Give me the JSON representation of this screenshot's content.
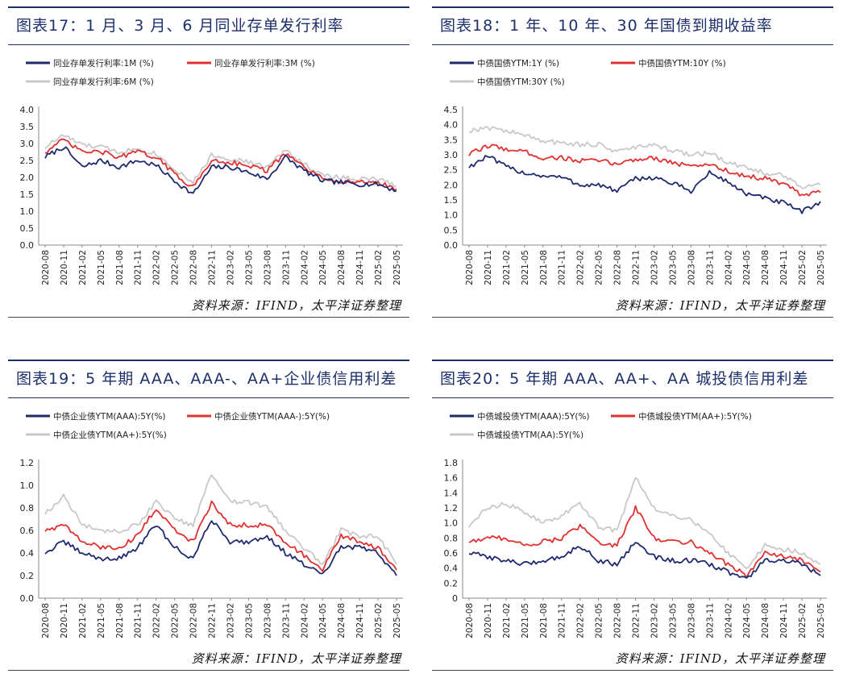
{
  "panels": [
    {
      "title": "图表17：1 月、3 月、6 月同业存单发行利率",
      "source": "资料来源：IFIND，太平洋证券整理"
    },
    {
      "title": "图表18：1 年、10 年、30 年国债到期收益率",
      "source": "资料来源：IFIND，太平洋证券整理"
    },
    {
      "title": "图表19：5 年期 AAA、AAA-、AA+企业债信用利差",
      "source": "资料来源：IFIND，太平洋证券整理"
    },
    {
      "title": "图表20：5 年期 AAA、AA+、AA 城投债信用利差",
      "source": "资料来源：IFIND，太平洋证券整理"
    }
  ],
  "chart_data": [
    {
      "type": "line",
      "x": [
        "2020-08",
        "2020-11",
        "2021-02",
        "2021-05",
        "2021-08",
        "2021-11",
        "2022-02",
        "2022-05",
        "2022-08",
        "2022-11",
        "2023-02",
        "2023-05",
        "2023-08",
        "2023-11",
        "2024-02",
        "2024-05",
        "2024-08",
        "2024-11",
        "2025-02",
        "2025-05"
      ],
      "xticks": [
        "2020-08",
        "2020-11",
        "2021-02",
        "2021-05",
        "2021-08",
        "2021-11",
        "2022-02",
        "2022-05",
        "2022-08",
        "2022-11",
        "2023-02",
        "2023-05",
        "2023-08",
        "2023-11",
        "2024-02",
        "2024-05",
        "2024-08",
        "2024-11",
        "2025-02",
        "2025-05"
      ],
      "ylim": [
        0,
        4.0
      ],
      "yticks": [
        "0.0",
        "0.5",
        "1.0",
        "1.5",
        "2.0",
        "2.5",
        "3.0",
        "3.5",
        "4.0"
      ],
      "series": [
        {
          "name": "同业存单发行利率:1M (%)",
          "color": "#1f2a6e",
          "values": [
            2.6,
            2.9,
            2.3,
            2.5,
            2.3,
            2.5,
            2.35,
            1.9,
            1.5,
            2.3,
            2.3,
            2.15,
            1.95,
            2.6,
            2.2,
            1.9,
            1.85,
            1.8,
            1.8,
            1.6
          ]
        },
        {
          "name": "同业存单发行利率:3M (%)",
          "color": "#e03030",
          "values": [
            2.75,
            3.1,
            2.75,
            2.75,
            2.6,
            2.75,
            2.6,
            2.1,
            1.7,
            2.5,
            2.45,
            2.35,
            2.2,
            2.7,
            2.3,
            1.95,
            1.9,
            1.85,
            1.85,
            1.65
          ]
        },
        {
          "name": "同业存单发行利率:6M (%)",
          "color": "#c8c8c8",
          "values": [
            2.9,
            3.25,
            2.95,
            2.9,
            2.75,
            2.85,
            2.7,
            2.25,
            1.85,
            2.65,
            2.55,
            2.45,
            2.3,
            2.8,
            2.4,
            2.05,
            2.0,
            1.95,
            1.95,
            1.75
          ]
        }
      ]
    },
    {
      "type": "line",
      "x": [
        "2020-08",
        "2020-11",
        "2021-02",
        "2021-05",
        "2021-08",
        "2021-11",
        "2022-02",
        "2022-05",
        "2022-08",
        "2022-11",
        "2023-02",
        "2023-05",
        "2023-08",
        "2023-11",
        "2024-02",
        "2024-05",
        "2024-08",
        "2024-11",
        "2025-02",
        "2025-05"
      ],
      "xticks": [
        "2020-08",
        "2020-11",
        "2021-02",
        "2021-05",
        "2021-08",
        "2021-11",
        "2022-02",
        "2022-05",
        "2022-08",
        "2022-11",
        "2023-02",
        "2023-05",
        "2023-08",
        "2023-11",
        "2024-02",
        "2024-05",
        "2024-08",
        "2024-11",
        "2025-02",
        "2025-05"
      ],
      "ylim": [
        0,
        4.5
      ],
      "yticks": [
        "0.0",
        "0.5",
        "1.0",
        "1.5",
        "2.0",
        "2.5",
        "3.0",
        "3.5",
        "4.0",
        "4.5"
      ],
      "series": [
        {
          "name": "中债国债YTM:1Y (%)",
          "color": "#1f2a6e",
          "values": [
            2.6,
            2.95,
            2.6,
            2.4,
            2.3,
            2.25,
            2.0,
            2.0,
            1.8,
            2.2,
            2.25,
            2.05,
            1.8,
            2.4,
            2.1,
            1.7,
            1.55,
            1.4,
            1.1,
            1.45
          ]
        },
        {
          "name": "中债国债YTM:10Y (%)",
          "color": "#e03030",
          "values": [
            3.0,
            3.3,
            3.2,
            3.1,
            2.9,
            2.9,
            2.8,
            2.8,
            2.7,
            2.85,
            2.9,
            2.75,
            2.6,
            2.7,
            2.45,
            2.3,
            2.2,
            2.05,
            1.65,
            1.75
          ]
        },
        {
          "name": "中债国债YTM:30Y (%)",
          "color": "#c8c8c8",
          "values": [
            3.8,
            3.9,
            3.8,
            3.65,
            3.45,
            3.4,
            3.35,
            3.35,
            3.1,
            3.25,
            3.3,
            3.15,
            3.0,
            3.05,
            2.75,
            2.55,
            2.4,
            2.3,
            1.95,
            2.0
          ]
        }
      ]
    },
    {
      "type": "line",
      "x": [
        "2020-08",
        "2020-11",
        "2021-02",
        "2021-05",
        "2021-08",
        "2021-11",
        "2022-02",
        "2022-05",
        "2022-08",
        "2022-11",
        "2023-02",
        "2023-05",
        "2023-08",
        "2023-11",
        "2024-02",
        "2024-05",
        "2024-08",
        "2024-11",
        "2025-02",
        "2025-05"
      ],
      "xticks": [
        "2020-08",
        "2020-11",
        "2021-02",
        "2021-05",
        "2021-08",
        "2021-11",
        "2022-02",
        "2022-05",
        "2022-08",
        "2022-11",
        "2023-02",
        "2023-05",
        "2023-08",
        "2023-11",
        "2024-02",
        "2024-05",
        "2024-08",
        "2024-11",
        "2025-02",
        "2025-05"
      ],
      "ylim": [
        0,
        1.2
      ],
      "yticks": [
        "0.0",
        "0.2",
        "0.4",
        "0.6",
        "0.8",
        "1.0",
        "1.2"
      ],
      "series": [
        {
          "name": "中债企业债YTM(AAA):5Y(%)",
          "color": "#1f2a6e",
          "values": [
            0.4,
            0.5,
            0.4,
            0.35,
            0.35,
            0.45,
            0.65,
            0.45,
            0.35,
            0.7,
            0.5,
            0.5,
            0.55,
            0.4,
            0.3,
            0.2,
            0.45,
            0.45,
            0.4,
            0.2
          ]
        },
        {
          "name": "中债企业债YTM(AAA-):5Y(%)",
          "color": "#e03030",
          "values": [
            0.6,
            0.65,
            0.5,
            0.45,
            0.45,
            0.55,
            0.8,
            0.6,
            0.5,
            0.85,
            0.65,
            0.65,
            0.65,
            0.5,
            0.38,
            0.25,
            0.55,
            0.5,
            0.45,
            0.25
          ]
        },
        {
          "name": "中债企业债YTM(AA+):5Y(%)",
          "color": "#c8c8c8",
          "values": [
            0.75,
            0.9,
            0.65,
            0.6,
            0.6,
            0.65,
            0.85,
            0.7,
            0.65,
            1.1,
            0.85,
            0.85,
            0.8,
            0.6,
            0.45,
            0.3,
            0.6,
            0.55,
            0.55,
            0.3
          ]
        }
      ]
    },
    {
      "type": "line",
      "x": [
        "2020-08",
        "2020-11",
        "2021-02",
        "2021-05",
        "2021-08",
        "2021-11",
        "2022-02",
        "2022-05",
        "2022-08",
        "2022-11",
        "2023-02",
        "2023-05",
        "2023-08",
        "2023-11",
        "2024-02",
        "2024-05",
        "2024-08",
        "2024-11",
        "2025-02",
        "2025-05"
      ],
      "xticks": [
        "2020-08",
        "2020-11",
        "2021-02",
        "2021-05",
        "2021-08",
        "2021-11",
        "2022-02",
        "2022-05",
        "2022-08",
        "2022-11",
        "2023-02",
        "2023-05",
        "2023-08",
        "2023-11",
        "2024-02",
        "2024-05",
        "2024-08",
        "2024-11",
        "2025-02",
        "2025-05"
      ],
      "ylim": [
        0,
        1.8
      ],
      "yticks": [
        "0",
        "0.2",
        "0.4",
        "0.6",
        "0.8",
        "1.0",
        "1.2",
        "1.4",
        "1.6",
        "1.8"
      ],
      "series": [
        {
          "name": "中债城投债YTM(AAA):5Y(%)",
          "color": "#1f2a6e",
          "values": [
            0.6,
            0.55,
            0.5,
            0.45,
            0.5,
            0.55,
            0.7,
            0.5,
            0.45,
            0.75,
            0.55,
            0.5,
            0.5,
            0.45,
            0.35,
            0.25,
            0.5,
            0.5,
            0.45,
            0.3
          ]
        },
        {
          "name": "中债城投债YTM(AA+):5Y(%)",
          "color": "#e03030",
          "values": [
            0.75,
            0.8,
            0.8,
            0.7,
            0.75,
            0.8,
            0.95,
            0.75,
            0.7,
            1.2,
            0.8,
            0.75,
            0.75,
            0.6,
            0.45,
            0.3,
            0.6,
            0.55,
            0.5,
            0.35
          ]
        },
        {
          "name": "中债城投债YTM(AA):5Y(%)",
          "color": "#c8c8c8",
          "values": [
            0.95,
            1.2,
            1.25,
            1.15,
            1.0,
            1.1,
            1.25,
            0.95,
            0.9,
            1.6,
            1.2,
            1.1,
            1.05,
            0.85,
            0.6,
            0.4,
            0.7,
            0.65,
            0.6,
            0.45
          ]
        }
      ]
    }
  ]
}
